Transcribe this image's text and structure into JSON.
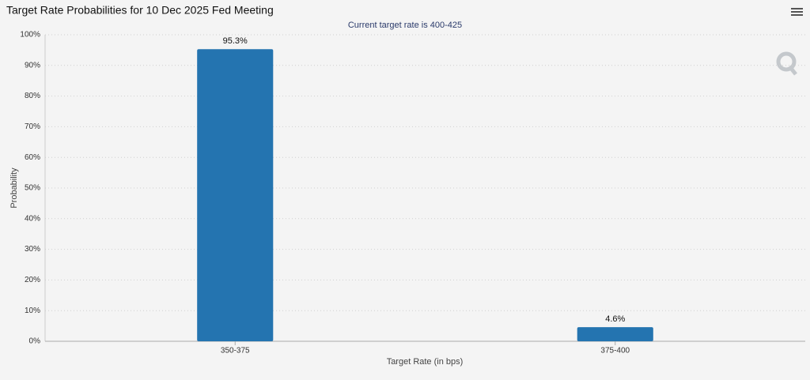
{
  "chart_data": {
    "type": "bar",
    "title": "Target Rate Probabilities for 10 Dec 2025 Fed Meeting",
    "subtitle": "Current target rate is 400-425",
    "x_label": "Target Rate (in bps)",
    "y_label": "Probability",
    "categories": [
      "350-375",
      "375-400"
    ],
    "values": [
      95.3,
      4.6
    ],
    "value_labels": [
      "95.3%",
      "4.6%"
    ],
    "color": "#2474b0",
    "ylim": [
      0,
      100
    ],
    "yticks": [
      {
        "value": 0,
        "label": "0%"
      },
      {
        "value": 10,
        "label": "10%"
      },
      {
        "value": 20,
        "label": "20%"
      },
      {
        "value": 30,
        "label": "30%"
      },
      {
        "value": 40,
        "label": "40%"
      },
      {
        "value": 50,
        "label": "50%"
      },
      {
        "value": 60,
        "label": "60%"
      },
      {
        "value": 70,
        "label": "70%"
      },
      {
        "value": 80,
        "label": "80%"
      },
      {
        "value": 90,
        "label": "90%"
      },
      {
        "value": 100,
        "label": "100%"
      }
    ],
    "grid": true
  }
}
